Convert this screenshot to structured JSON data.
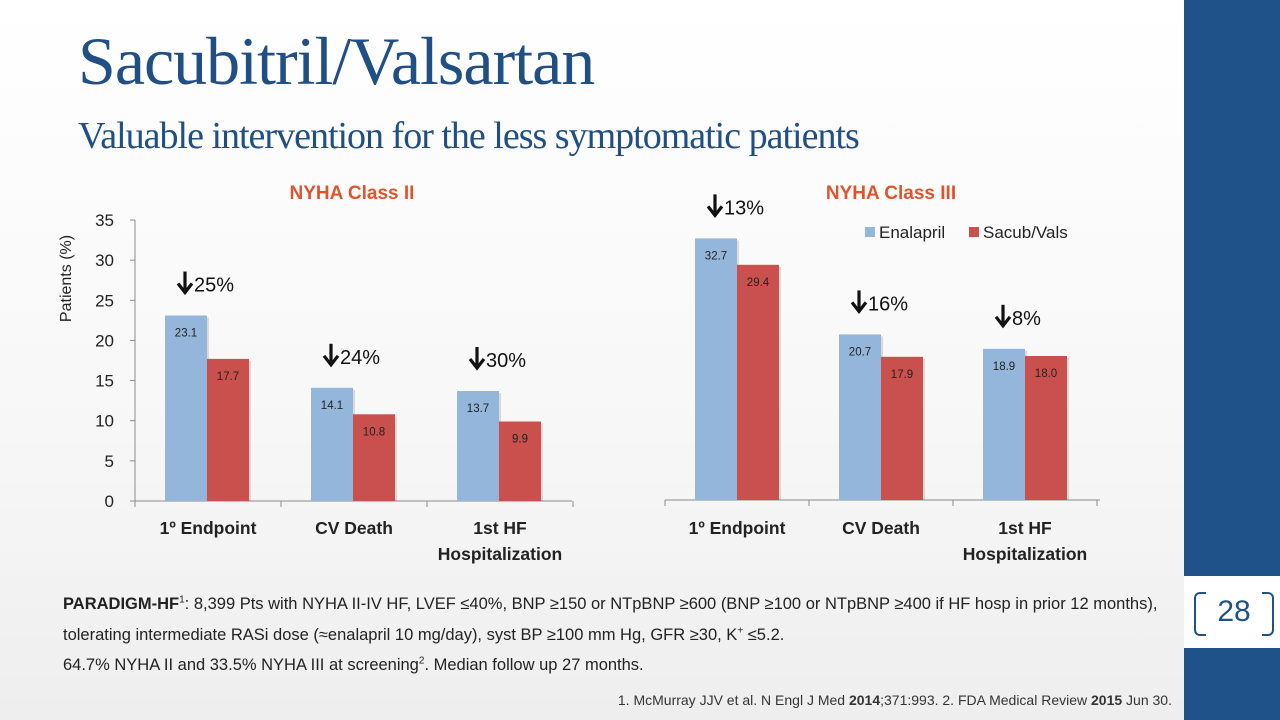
{
  "slide": {
    "title": "Sacubitril/Valsartan",
    "subtitle": "Valuable intervention for the less symptomatic patients",
    "page_number": "28",
    "footnote": {
      "lead": "PARADIGM-HF",
      "lead_sup": "1",
      "line1": ": 8,399 Pts with NYHA II-IV HF, LVEF ≤40%, BNP ≥150 or NTpBNP ≥600 (BNP ≥100 or NTpBNP ≥400 if HF hosp in prior 12 months), tolerating intermediate RASi dose (≈enalapril 10 mg/day), syst BP ≥100 mm Hg, GFR ≥30, K",
      "k_sup": "+",
      "line1_end": " ≤5.2.",
      "line2": "64.7% NYHA II and 33.5% NYHA III at screening",
      "line2_sup": "2",
      "line2_end": ". Median follow up 27 months."
    },
    "reference": {
      "p1": "1. McMurray JJV et al. N Engl J Med ",
      "y1": "2014",
      "p2": ";371:993. 2. FDA Medical Review ",
      "y2": "2015",
      "p3": " Jun 30."
    }
  },
  "colors": {
    "enalapril": "#95b6db",
    "sacub": "#c9504c",
    "chart_title": "#e0542c",
    "brand": "#1f5288"
  },
  "chart_data": [
    {
      "type": "bar",
      "title": "NYHA Class II",
      "ylabel": "Patients (%)",
      "ylim": [
        0,
        35
      ],
      "yticks": [
        "0",
        "5",
        "10",
        "15",
        "20",
        "25",
        "30",
        "35"
      ],
      "categories": [
        "1º Endpoint",
        "CV Death",
        "1st HF Hospitalization"
      ],
      "series": [
        {
          "name": "Enalapril",
          "values": [
            23.1,
            14.1,
            13.7
          ],
          "labels": [
            "23.1",
            "14.1",
            "13.7"
          ]
        },
        {
          "name": "Sacub/Vals",
          "values": [
            17.7,
            10.8,
            9.9
          ],
          "labels": [
            "17.7",
            "10.8",
            "9.9"
          ]
        }
      ],
      "annotations": [
        "25%",
        "24%",
        "30%"
      ]
    },
    {
      "type": "bar",
      "title": "NYHA Class III",
      "ylim": [
        0,
        35
      ],
      "categories": [
        "1º Endpoint",
        "CV Death",
        "1st HF Hospitalization"
      ],
      "series": [
        {
          "name": "Enalapril",
          "values": [
            32.7,
            20.7,
            18.9
          ],
          "labels": [
            "32.7",
            "20.7",
            "18.9"
          ]
        },
        {
          "name": "Sacub/Vals",
          "values": [
            29.4,
            17.9,
            18.0
          ],
          "labels": [
            "29.4",
            "17.9",
            "18.0"
          ]
        }
      ],
      "annotations": [
        "13%",
        "16%",
        "8%"
      ],
      "legend": [
        "Enalapril",
        "Sacub/Vals"
      ],
      "legend_position": "top-right"
    }
  ]
}
